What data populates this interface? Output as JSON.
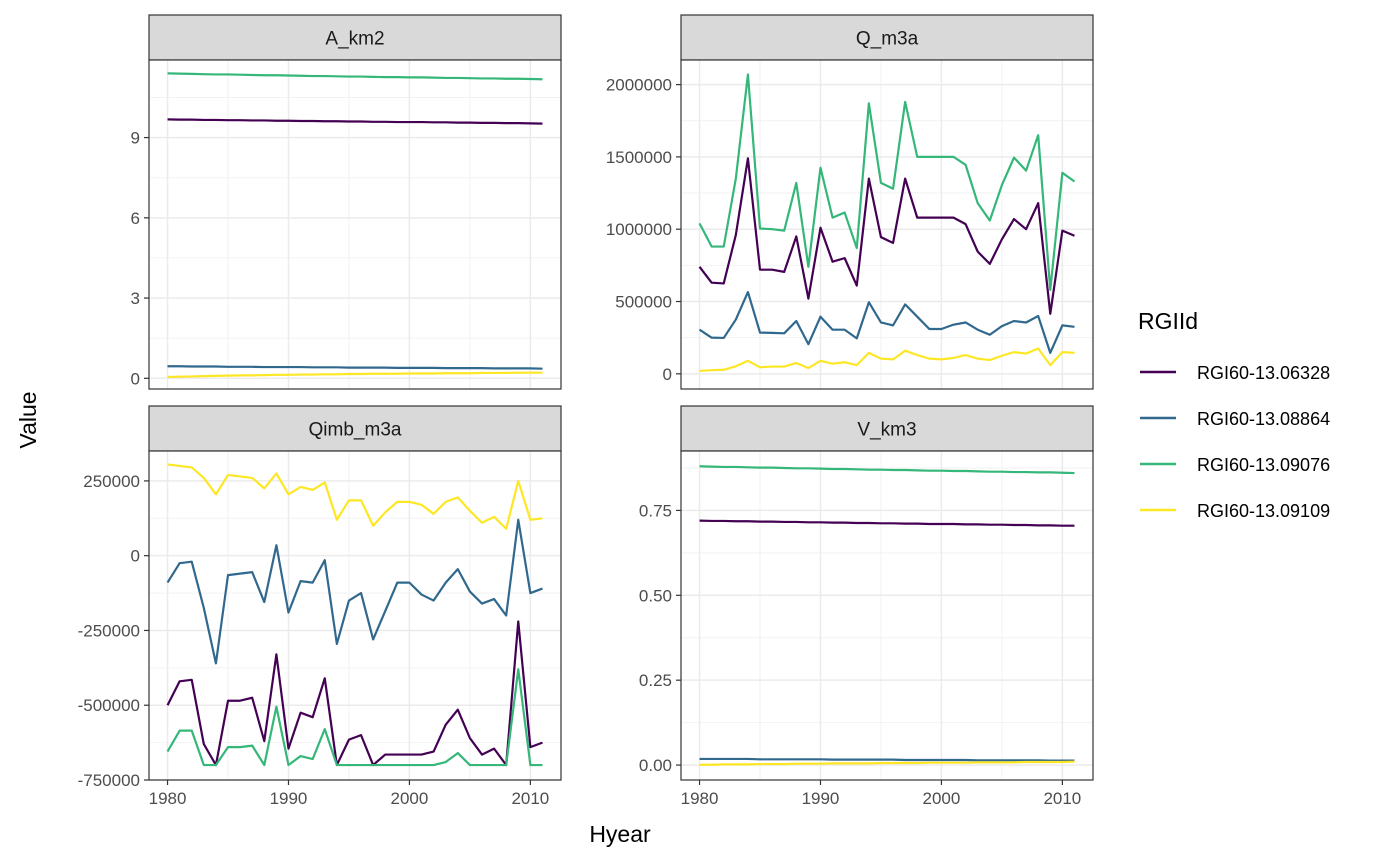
{
  "chart_data": {
    "type": "line",
    "xlabel": "Hyear",
    "ylabel": "Value",
    "grid": true,
    "legend": {
      "title": "RGIId",
      "placement": "right",
      "entries": [
        "RGI60-13.06328",
        "RGI60-13.08864",
        "RGI60-13.09076",
        "RGI60-13.09109"
      ]
    },
    "colors": {
      "RGI60-13.06328": "#440154",
      "RGI60-13.08864": "#31688E",
      "RGI60-13.09076": "#35B779",
      "RGI60-13.09109": "#FDE725"
    },
    "x": [
      1980,
      1981,
      1982,
      1983,
      1984,
      1985,
      1986,
      1987,
      1988,
      1989,
      1990,
      1991,
      1992,
      1993,
      1994,
      1995,
      1996,
      1997,
      1998,
      1999,
      2000,
      2001,
      2002,
      2003,
      2004,
      2005,
      2006,
      2007,
      2008,
      2009,
      2010,
      2011
    ],
    "xlim": [
      1980,
      2011
    ],
    "x_ticks": [
      1980,
      1990,
      2000,
      2010
    ],
    "panels": [
      {
        "title": "A_km2",
        "ylim": [
          -0.4,
          11.9
        ],
        "y_ticks": [
          0,
          3,
          6,
          9
        ],
        "y_tick_labels": [
          "0",
          "3",
          "6",
          "9"
        ],
        "series": [
          {
            "name": "RGI60-13.06328",
            "values": [
              9.68,
              9.67,
              9.67,
              9.66,
              9.66,
              9.65,
              9.65,
              9.64,
              9.64,
              9.63,
              9.63,
              9.62,
              9.62,
              9.61,
              9.61,
              9.6,
              9.6,
              9.59,
              9.59,
              9.58,
              9.58,
              9.58,
              9.57,
              9.57,
              9.56,
              9.56,
              9.55,
              9.55,
              9.54,
              9.54,
              9.53,
              9.52
            ]
          },
          {
            "name": "RGI60-13.08864",
            "values": [
              0.45,
              0.45,
              0.44,
              0.44,
              0.44,
              0.43,
              0.43,
              0.43,
              0.42,
              0.42,
              0.42,
              0.42,
              0.41,
              0.41,
              0.41,
              0.4,
              0.4,
              0.4,
              0.4,
              0.39,
              0.39,
              0.39,
              0.39,
              0.38,
              0.38,
              0.38,
              0.38,
              0.37,
              0.37,
              0.37,
              0.37,
              0.36
            ]
          },
          {
            "name": "RGI60-13.09076",
            "values": [
              11.4,
              11.39,
              11.38,
              11.37,
              11.36,
              11.36,
              11.35,
              11.34,
              11.33,
              11.33,
              11.32,
              11.31,
              11.3,
              11.3,
              11.29,
              11.28,
              11.28,
              11.27,
              11.26,
              11.26,
              11.25,
              11.25,
              11.24,
              11.23,
              11.23,
              11.22,
              11.21,
              11.21,
              11.2,
              11.2,
              11.19,
              11.18
            ]
          },
          {
            "name": "RGI60-13.09109",
            "values": [
              0.05,
              0.06,
              0.07,
              0.08,
              0.09,
              0.1,
              0.11,
              0.11,
              0.12,
              0.13,
              0.13,
              0.14,
              0.14,
              0.15,
              0.15,
              0.16,
              0.16,
              0.17,
              0.17,
              0.17,
              0.18,
              0.18,
              0.18,
              0.19,
              0.19,
              0.19,
              0.2,
              0.2,
              0.2,
              0.21,
              0.21,
              0.21
            ]
          }
        ]
      },
      {
        "title": "Q_m3a",
        "ylim": [
          -105000,
          2170000
        ],
        "y_ticks": [
          0,
          500000,
          1000000,
          1500000,
          2000000
        ],
        "y_tick_labels": [
          "0",
          "500000",
          "1000000",
          "1500000",
          "2000000"
        ],
        "series": [
          {
            "name": "RGI60-13.06328",
            "values": [
              740000,
              630000,
              625000,
              960000,
              1490000,
              720000,
              720000,
              705000,
              950000,
              520000,
              1010000,
              775000,
              800000,
              610000,
              1350000,
              945000,
              905000,
              1350000,
              1080000,
              1080000,
              1080000,
              1080000,
              1035000,
              845000,
              760000,
              930000,
              1070000,
              1000000,
              1180000,
              415000,
              990000,
              955000
            ]
          },
          {
            "name": "RGI60-13.08864",
            "values": [
              305000,
              250000,
              248000,
              375000,
              565000,
              285000,
              283000,
              280000,
              365000,
              205000,
              395000,
              305000,
              305000,
              245000,
              495000,
              355000,
              335000,
              480000,
              395000,
              310000,
              310000,
              340000,
              355000,
              305000,
              270000,
              330000,
              365000,
              355000,
              400000,
              145000,
              335000,
              325000
            ]
          },
          {
            "name": "RGI60-13.09076",
            "values": [
              1040000,
              880000,
              880000,
              1350000,
              2070000,
              1005000,
              1000000,
              990000,
              1320000,
              740000,
              1425000,
              1080000,
              1115000,
              870000,
              1870000,
              1320000,
              1280000,
              1880000,
              1500000,
              1500000,
              1500000,
              1500000,
              1445000,
              1180000,
              1060000,
              1305000,
              1495000,
              1405000,
              1650000,
              580000,
              1390000,
              1330000
            ]
          },
          {
            "name": "RGI60-13.09109",
            "values": [
              20000,
              25000,
              28000,
              52000,
              90000,
              45000,
              50000,
              50000,
              75000,
              40000,
              90000,
              70000,
              80000,
              60000,
              145000,
              105000,
              100000,
              160000,
              130000,
              105000,
              100000,
              110000,
              130000,
              105000,
              95000,
              125000,
              150000,
              140000,
              175000,
              60000,
              150000,
              145000
            ]
          }
        ]
      },
      {
        "title": "Qimb_m3a",
        "ylim": [
          -750000,
          350000
        ],
        "y_ticks": [
          -750000,
          -500000,
          -250000,
          0,
          250000
        ],
        "y_tick_labels": [
          "-750000",
          "-500000",
          "-250000",
          "0",
          "250000"
        ],
        "series": [
          {
            "name": "RGI60-13.06328",
            "values": [
              -500000,
              -420000,
              -415000,
              -630000,
              -700000,
              -485000,
              -485000,
              -475000,
              -620000,
              -330000,
              -645000,
              -525000,
              -540000,
              -410000,
              -700000,
              -615000,
              -600000,
              -700000,
              -665000,
              -665000,
              -665000,
              -665000,
              -655000,
              -565000,
              -515000,
              -610000,
              -665000,
              -645000,
              -700000,
              -220000,
              -640000,
              -625000
            ]
          },
          {
            "name": "RGI60-13.08864",
            "values": [
              -90000,
              -25000,
              -20000,
              -175000,
              -360000,
              -65000,
              -60000,
              -55000,
              -155000,
              35000,
              -190000,
              -85000,
              -90000,
              -15000,
              -295000,
              -150000,
              -125000,
              -280000,
              -185000,
              -90000,
              -90000,
              -130000,
              -150000,
              -90000,
              -45000,
              -120000,
              -160000,
              -145000,
              -200000,
              120000,
              -125000,
              -110000
            ]
          },
          {
            "name": "RGI60-13.09076",
            "values": [
              -655000,
              -585000,
              -585000,
              -700000,
              -700000,
              -640000,
              -640000,
              -635000,
              -700000,
              -505000,
              -700000,
              -670000,
              -680000,
              -580000,
              -700000,
              -700000,
              -700000,
              -700000,
              -700000,
              -700000,
              -700000,
              -700000,
              -700000,
              -690000,
              -660000,
              -700000,
              -700000,
              -700000,
              -700000,
              -380000,
              -700000,
              -700000
            ]
          },
          {
            "name": "RGI60-13.09109",
            "values": [
              305000,
              300000,
              295000,
              260000,
              205000,
              270000,
              265000,
              260000,
              225000,
              275000,
              205000,
              230000,
              220000,
              245000,
              120000,
              185000,
              185000,
              100000,
              145000,
              180000,
              180000,
              170000,
              140000,
              180000,
              195000,
              150000,
              110000,
              130000,
              90000,
              250000,
              120000,
              125000
            ]
          }
        ]
      },
      {
        "title": "V_km3",
        "ylim": [
          -0.044,
          0.925
        ],
        "y_ticks": [
          0,
          0.25,
          0.5,
          0.75
        ],
        "y_tick_labels": [
          "0.00",
          "0.25",
          "0.50",
          "0.75"
        ],
        "series": [
          {
            "name": "RGI60-13.06328",
            "values": [
              0.72,
              0.719,
              0.719,
              0.718,
              0.718,
              0.717,
              0.717,
              0.716,
              0.716,
              0.715,
              0.715,
              0.714,
              0.714,
              0.713,
              0.713,
              0.712,
              0.712,
              0.711,
              0.711,
              0.71,
              0.71,
              0.71,
              0.709,
              0.709,
              0.708,
              0.708,
              0.707,
              0.707,
              0.706,
              0.706,
              0.705,
              0.705
            ]
          },
          {
            "name": "RGI60-13.08864",
            "values": [
              0.018,
              0.018,
              0.018,
              0.018,
              0.018,
              0.017,
              0.017,
              0.017,
              0.017,
              0.017,
              0.017,
              0.016,
              0.016,
              0.016,
              0.016,
              0.016,
              0.016,
              0.015,
              0.015,
              0.015,
              0.015,
              0.015,
              0.015,
              0.014,
              0.014,
              0.014,
              0.014,
              0.014,
              0.014,
              0.013,
              0.013,
              0.013
            ]
          },
          {
            "name": "RGI60-13.09076",
            "values": [
              0.88,
              0.879,
              0.878,
              0.878,
              0.877,
              0.876,
              0.876,
              0.875,
              0.874,
              0.874,
              0.873,
              0.872,
              0.872,
              0.871,
              0.87,
              0.87,
              0.869,
              0.869,
              0.868,
              0.867,
              0.867,
              0.866,
              0.866,
              0.865,
              0.864,
              0.864,
              0.863,
              0.863,
              0.862,
              0.862,
              0.861,
              0.86
            ]
          },
          {
            "name": "RGI60-13.09109",
            "values": [
              0.001,
              0.001,
              0.002,
              0.002,
              0.002,
              0.003,
              0.003,
              0.003,
              0.004,
              0.004,
              0.004,
              0.005,
              0.005,
              0.005,
              0.005,
              0.006,
              0.006,
              0.006,
              0.006,
              0.007,
              0.007,
              0.007,
              0.007,
              0.008,
              0.008,
              0.008,
              0.008,
              0.009,
              0.009,
              0.009,
              0.009,
              0.01
            ]
          }
        ]
      }
    ]
  }
}
